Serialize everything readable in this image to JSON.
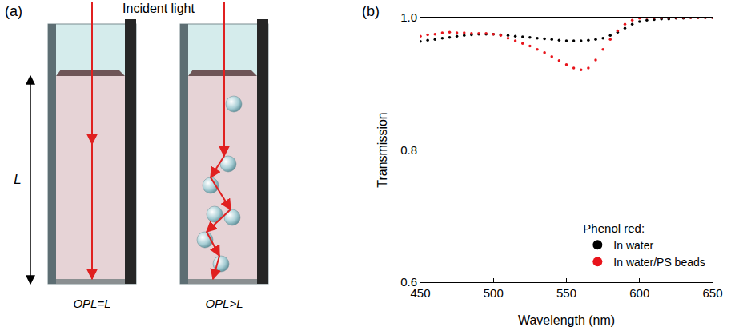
{
  "diagram": {
    "panel_label": "(a)",
    "incident_light": "Incident light",
    "length_label": "L",
    "cuvettes": [
      {
        "caption": "OPL=L"
      },
      {
        "caption": "OPL>L"
      }
    ]
  },
  "chart_data": {
    "panel_label": "(b)",
    "type": "scatter",
    "x_label": "Wavelength (nm)",
    "y_label": "Transmission",
    "x": [
      450,
      455,
      460,
      465,
      470,
      475,
      480,
      485,
      490,
      495,
      500,
      505,
      510,
      515,
      520,
      525,
      530,
      535,
      540,
      545,
      550,
      555,
      560,
      565,
      570,
      575,
      580,
      585,
      590,
      595,
      600,
      605,
      610,
      615,
      620,
      625,
      630,
      635,
      640,
      645,
      650
    ],
    "series": [
      {
        "name": "In water",
        "color": "#000000",
        "marker": "circle",
        "values": [
          0.964,
          0.966,
          0.967,
          0.969,
          0.97,
          0.972,
          0.973,
          0.974,
          0.975,
          0.975,
          0.975,
          0.974,
          0.973,
          0.972,
          0.971,
          0.97,
          0.969,
          0.968,
          0.967,
          0.966,
          0.965,
          0.965,
          0.965,
          0.966,
          0.967,
          0.969,
          0.973,
          0.978,
          0.984,
          0.99,
          0.994,
          0.996,
          0.997,
          0.998,
          0.998,
          0.999,
          0.999,
          1.0,
          1.0,
          1.0,
          1.0
        ]
      },
      {
        "name": "In water/PS beads",
        "color": "#e8141b",
        "marker": "circle",
        "values": [
          0.972,
          0.974,
          0.975,
          0.977,
          0.978,
          0.977,
          0.977,
          0.976,
          0.976,
          0.976,
          0.975,
          0.973,
          0.969,
          0.965,
          0.961,
          0.957,
          0.952,
          0.947,
          0.941,
          0.935,
          0.929,
          0.924,
          0.921,
          0.924,
          0.936,
          0.952,
          0.967,
          0.98,
          0.99,
          0.996,
          0.999,
          1.0,
          1.0,
          1.0,
          1.0,
          1.0,
          1.0,
          1.0,
          1.0,
          1.0,
          1.0
        ]
      }
    ],
    "xlim": [
      450,
      650
    ],
    "ylim": [
      0.6,
      1.0
    ],
    "xticks": [
      450,
      500,
      550,
      600,
      650
    ],
    "yticks": [
      0.6,
      0.8,
      {
        "value": 1.0,
        "label": "1.0"
      }
    ],
    "grid": false,
    "legend": "lower right",
    "legend_title": "Phenol red:"
  }
}
